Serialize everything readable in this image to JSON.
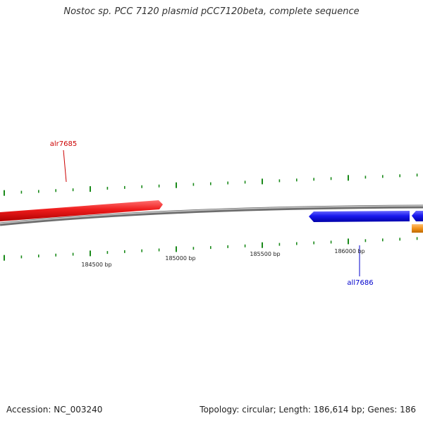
{
  "title": "Nostoc sp. PCC 7120 plasmid pCC7120beta, complete sequence",
  "footer": {
    "accession": "Accession: NC_003240",
    "summary": "Topology: circular; Length: 186,614 bp; Genes: 186"
  },
  "colors": {
    "background": "#ffffff",
    "backbone": "#888888",
    "tick": "#1a8a1a",
    "gene_forward": "#ee1c1c",
    "gene_reverse": "#1a1aee",
    "gene_other": "#f2921a",
    "label_forward": "#cc0000",
    "label_reverse": "#0000cc"
  },
  "position_labels": [
    "184500 bp",
    "185000 bp",
    "185500 bp",
    "186000 bp"
  ],
  "genes": [
    {
      "name": "alr7685",
      "strand": "+"
    },
    {
      "name": "all7686",
      "strand": "-"
    }
  ]
}
